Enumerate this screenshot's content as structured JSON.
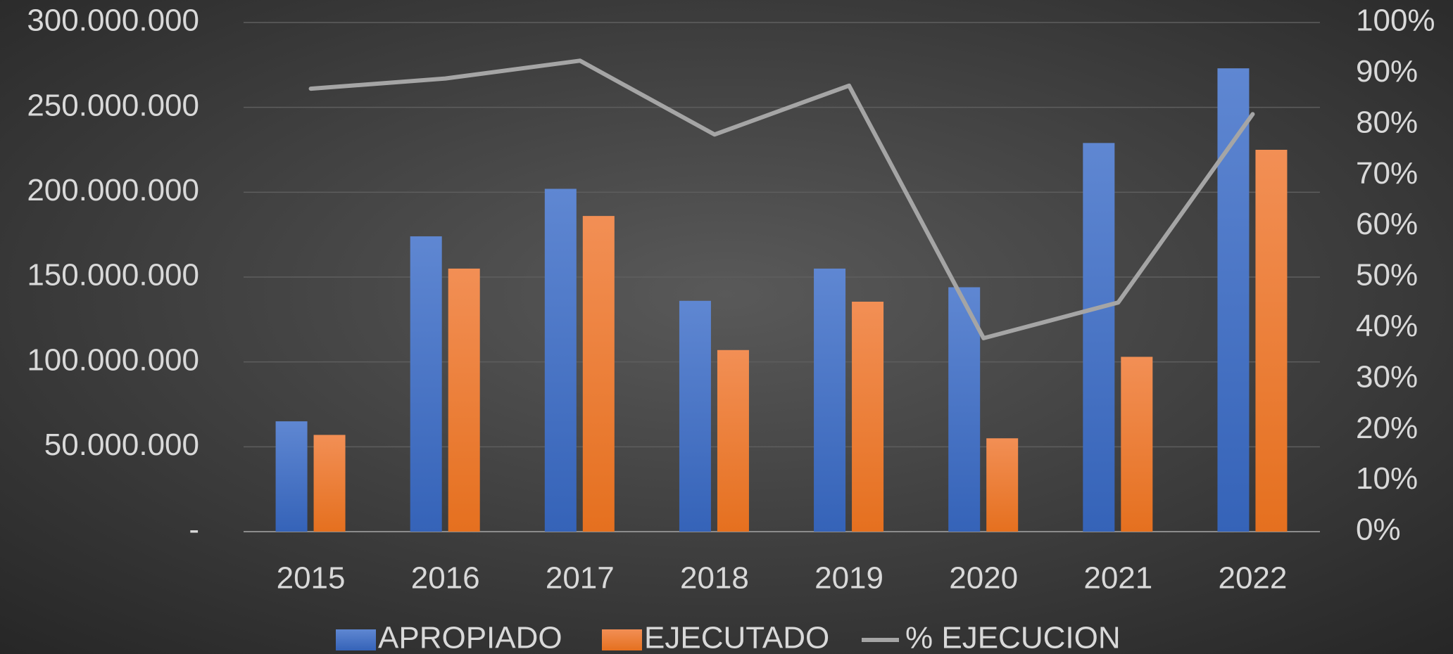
{
  "chart_data": {
    "type": "bar",
    "categories": [
      "2015",
      "2016",
      "2017",
      "2018",
      "2019",
      "2020",
      "2021",
      "2022"
    ],
    "series": [
      {
        "name": "APROPIADO",
        "color": "#4472c4",
        "values": [
          65000000,
          174000000,
          202000000,
          136000000,
          155000000,
          144000000,
          229000000,
          273000000
        ]
      },
      {
        "name": "EJECUTADO",
        "color": "#ed7d31",
        "values": [
          57000000,
          155000000,
          186000000,
          107000000,
          135500000,
          55000000,
          103000000,
          225000000
        ]
      },
      {
        "name": "% EJECUCION",
        "type": "line",
        "axis": "y2",
        "color": "#a5a5a5",
        "values": [
          87,
          89,
          92.5,
          78,
          87.6,
          38,
          45,
          82
        ]
      }
    ],
    "ylim": [
      0,
      300000000
    ],
    "yticks": [
      {
        "value": 0,
        "label": "-"
      },
      {
        "value": 50000000,
        "label": "50.000.000"
      },
      {
        "value": 100000000,
        "label": "100.000.000"
      },
      {
        "value": 150000000,
        "label": "150.000.000"
      },
      {
        "value": 200000000,
        "label": "200.000.000"
      },
      {
        "value": 250000000,
        "label": "250.000.000"
      },
      {
        "value": 300000000,
        "label": "300.000.000"
      }
    ],
    "y2lim": [
      0,
      100
    ],
    "y2ticks": [
      {
        "value": 0,
        "label": "0%"
      },
      {
        "value": 10,
        "label": "10%"
      },
      {
        "value": 20,
        "label": "20%"
      },
      {
        "value": 30,
        "label": "30%"
      },
      {
        "value": 40,
        "label": "40%"
      },
      {
        "value": 50,
        "label": "50%"
      },
      {
        "value": 60,
        "label": "60%"
      },
      {
        "value": 70,
        "label": "70%"
      },
      {
        "value": 80,
        "label": "80%"
      },
      {
        "value": 90,
        "label": "90%"
      },
      {
        "value": 100,
        "label": "100%"
      }
    ],
    "grid": true,
    "legend": "bottom"
  }
}
